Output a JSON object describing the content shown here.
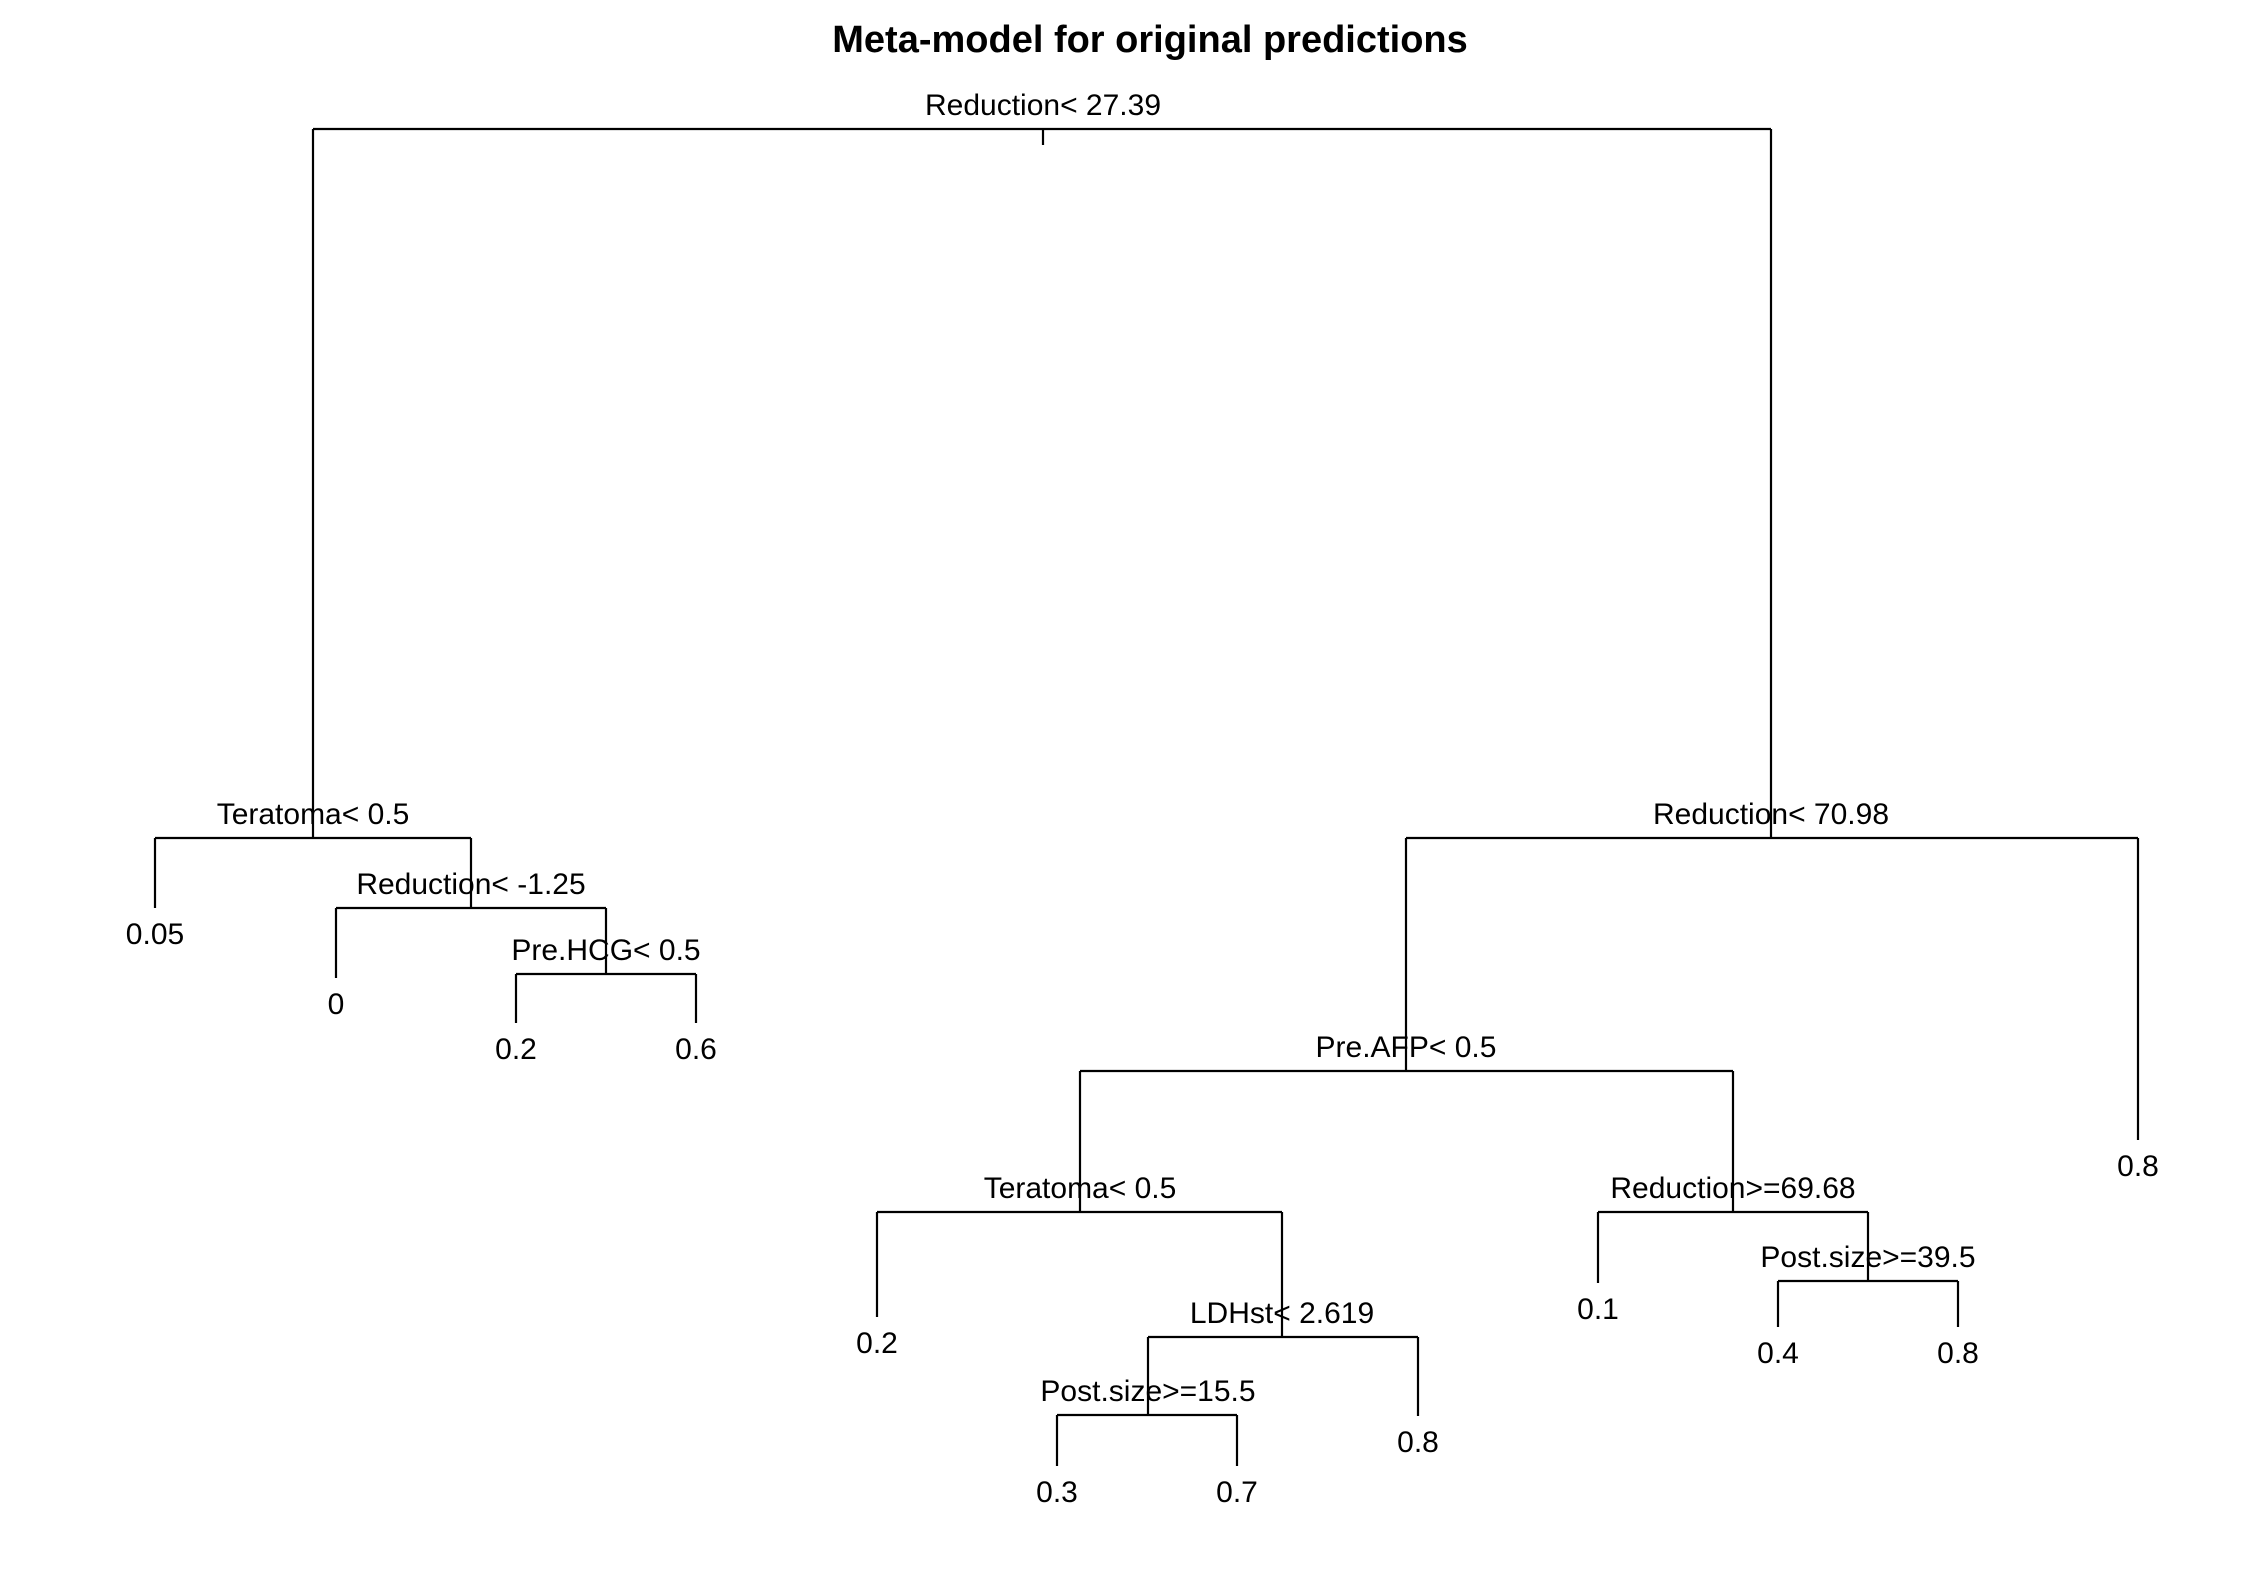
{
  "title": "Meta-model for original predictions",
  "tree": {
    "split": "Reduction< 27.39",
    "children": [
      {
        "split": "Teratoma< 0.5",
        "children": [
          {
            "leaf": "0.05"
          },
          {
            "split": "Reduction< -1.25",
            "children": [
              {
                "leaf": "0"
              },
              {
                "split": "Pre.HCG< 0.5",
                "children": [
                  {
                    "leaf": "0.2"
                  },
                  {
                    "leaf": "0.6"
                  }
                ]
              }
            ]
          }
        ]
      },
      {
        "split": "Reduction< 70.98",
        "children": [
          {
            "split": "Pre.AFP< 0.5",
            "children": [
              {
                "split": "Teratoma< 0.5",
                "children": [
                  {
                    "leaf": "0.2"
                  },
                  {
                    "split": "LDHst< 2.619",
                    "children": [
                      {
                        "split": "Post.size>=15.5",
                        "children": [
                          {
                            "leaf": "0.3"
                          },
                          {
                            "leaf": "0.7"
                          }
                        ]
                      },
                      {
                        "leaf": "0.8"
                      }
                    ]
                  }
                ]
              },
              {
                "split": "Reduction>=69.68",
                "children": [
                  {
                    "leaf": "0.1"
                  },
                  {
                    "split": "Post.size>=39.5",
                    "children": [
                      {
                        "leaf": "0.4"
                      },
                      {
                        "leaf": "0.8"
                      }
                    ]
                  }
                ]
              }
            ]
          },
          {
            "leaf": "0.8"
          }
        ]
      }
    ]
  }
}
